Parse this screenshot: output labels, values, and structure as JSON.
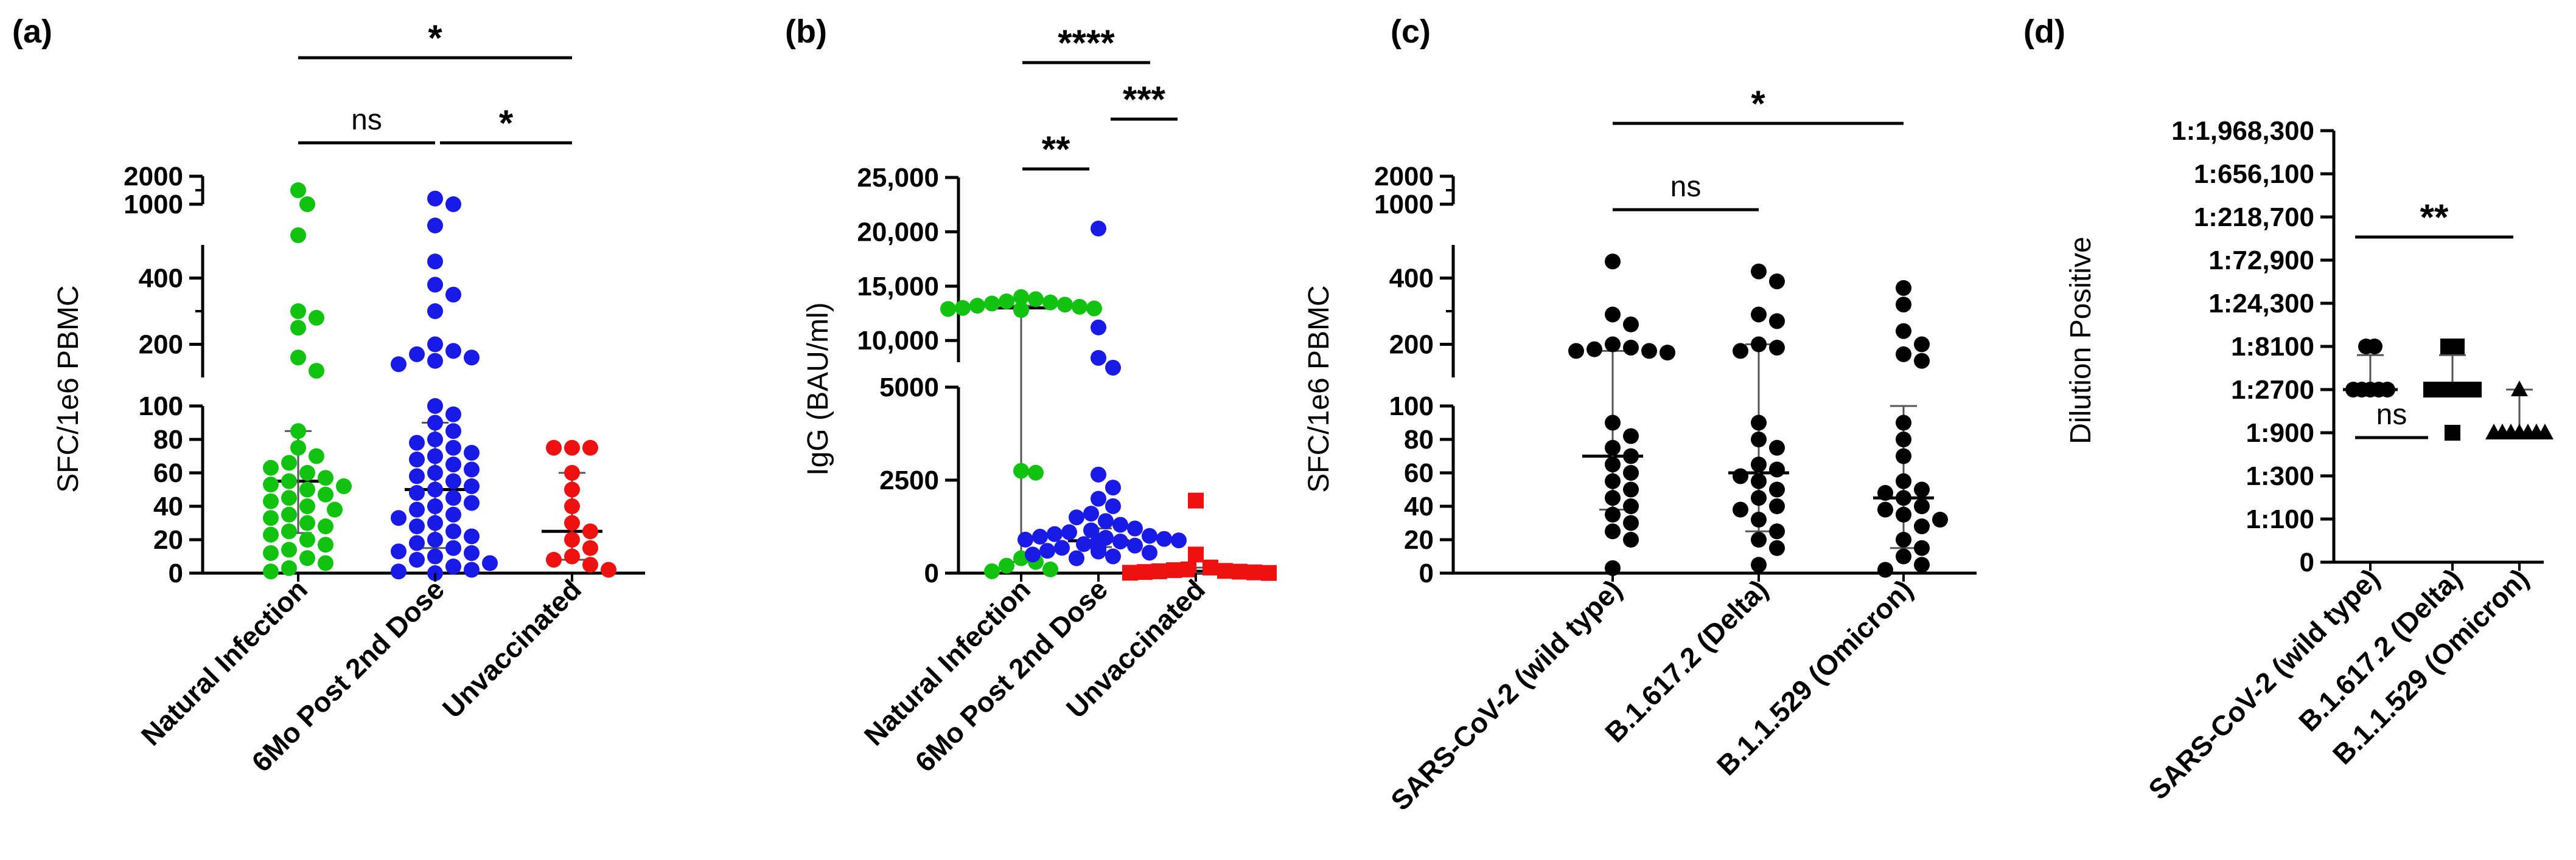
{
  "figure": {
    "panel_labels": [
      "(a)",
      "(b)",
      "(c)",
      "(d)"
    ]
  },
  "colors": {
    "natural_infection": "#11c211",
    "post_dose": "#1a1ae6",
    "unvaccinated": "#ee1111",
    "variant": "#000000"
  },
  "chart_data": [
    {
      "panel": "(a)",
      "type": "scatter",
      "ylabel": "SFC/1e6 PBMC",
      "categories": [
        "Natural Infection",
        "6Mo Post 2nd Dose",
        "Unvaccinated"
      ],
      "y_segments": [
        {
          "range": [
            0,
            100
          ],
          "ticks": [
            0,
            20,
            40,
            60,
            80,
            100
          ]
        },
        {
          "range": [
            100,
            500
          ],
          "ticks": [
            100,
            200,
            400
          ]
        },
        {
          "range": [
            1000,
            2000
          ],
          "ticks": [
            1000,
            2000
          ]
        }
      ],
      "series": [
        {
          "name": "Natural Infection",
          "color_key": "natural_infection",
          "marker": "circle",
          "median": 55,
          "iqr": [
            24,
            85
          ],
          "values": [
            1500,
            1000,
            700,
            300,
            280,
            250,
            160,
            120,
            85,
            75,
            70,
            66,
            63,
            60,
            57,
            55,
            53,
            52,
            50,
            47,
            45,
            43,
            40,
            38,
            35,
            33,
            30,
            28,
            25,
            23,
            20,
            17,
            14,
            12,
            9,
            6,
            3,
            1
          ]
        },
        {
          "name": "6Mo Post 2nd Dose",
          "color_key": "post_dose",
          "marker": "circle",
          "median": 50,
          "iqr": [
            15,
            90
          ],
          "values": [
            1200,
            1000,
            900,
            450,
            380,
            350,
            300,
            200,
            180,
            170,
            160,
            150,
            140,
            100,
            95,
            90,
            85,
            80,
            78,
            75,
            72,
            70,
            68,
            65,
            62,
            60,
            58,
            55,
            52,
            50,
            48,
            45,
            42,
            40,
            38,
            35,
            33,
            30,
            28,
            25,
            22,
            20,
            18,
            15,
            13,
            12,
            10,
            8,
            6,
            4,
            2,
            1,
            0
          ]
        },
        {
          "name": "Unvaccinated",
          "color_key": "unvaccinated",
          "marker": "circle",
          "median": 25,
          "iqr": [
            8,
            60
          ],
          "values": [
            75,
            75,
            75,
            60,
            50,
            40,
            30,
            25,
            20,
            15,
            10,
            8,
            5,
            2
          ]
        }
      ],
      "brackets": [
        {
          "from": 0,
          "to": 1,
          "label": "ns",
          "level": 1
        },
        {
          "from": 1,
          "to": 2,
          "label": "*",
          "level": 1
        },
        {
          "from": 0,
          "to": 2,
          "label": "*",
          "level": 2
        }
      ]
    },
    {
      "panel": "(b)",
      "type": "scatter",
      "ylabel": "IgG (BAU/ml)",
      "categories": [
        "Natural Infection",
        "6Mo Post 2nd Dose",
        "Unvaccinated"
      ],
      "y_segments": [
        {
          "range": [
            0,
            5000
          ],
          "ticks": [
            0,
            2500,
            5000
          ],
          "tick_labels": [
            "0",
            "2500",
            "5000"
          ]
        },
        {
          "range": [
            8000,
            25000
          ],
          "ticks": [
            10000,
            15000,
            20000,
            25000
          ],
          "tick_labels": [
            "10,000",
            "15,000",
            "20,000",
            "25,000"
          ]
        }
      ],
      "series": [
        {
          "name": "Natural Infection",
          "color_key": "natural_infection",
          "marker": "circle",
          "median": 13000,
          "iqr": [
            300,
            13200
          ],
          "values": [
            14000,
            13800,
            13600,
            13500,
            13400,
            13300,
            13200,
            13100,
            13000,
            12950,
            12900,
            12850,
            12800,
            2750,
            2700,
            400,
            300,
            200,
            100,
            50
          ]
        },
        {
          "name": "6Mo Post 2nd Dose",
          "color_key": "post_dose",
          "marker": "circle",
          "median": 870,
          "iqr": [
            700,
            1200
          ],
          "values": [
            20300,
            11200,
            8400,
            7500,
            2650,
            2300,
            2000,
            1800,
            1600,
            1500,
            1400,
            1300,
            1200,
            1150,
            1100,
            1050,
            1000,
            980,
            950,
            920,
            900,
            880,
            860,
            850,
            830,
            810,
            800,
            780,
            760,
            740,
            720,
            700,
            680,
            650,
            620,
            600,
            580,
            550,
            500,
            450,
            400
          ]
        },
        {
          "name": "Unvaccinated",
          "color_key": "unvaccinated",
          "marker": "square",
          "median": 50,
          "iqr": [
            0,
            150
          ],
          "values": [
            1950,
            500,
            150,
            100,
            80,
            60,
            50,
            40,
            30,
            20,
            10,
            5
          ]
        }
      ],
      "brackets": [
        {
          "from": 0,
          "to": 1,
          "label": "**",
          "level": 1
        },
        {
          "from": 1,
          "to": 2,
          "label": "***",
          "level": 2
        },
        {
          "from": 0,
          "to": 2,
          "label": "****",
          "level": 3
        }
      ]
    },
    {
      "panel": "(c)",
      "type": "scatter",
      "ylabel": "SFC/1e6 PBMC",
      "categories": [
        "SARS-CoV-2 (wild type)",
        "B.1.617.2 (Delta)",
        "B.1.1.529 (Omicron)"
      ],
      "y_segments": [
        {
          "range": [
            0,
            100
          ],
          "ticks": [
            0,
            20,
            40,
            60,
            80,
            100
          ]
        },
        {
          "range": [
            100,
            500
          ],
          "ticks": [
            100,
            200,
            400
          ]
        },
        {
          "range": [
            1000,
            2000
          ],
          "ticks": [
            1000,
            2000
          ]
        }
      ],
      "series": [
        {
          "name": "SARS-CoV-2 (wild type)",
          "color_key": "variant",
          "marker": "circle",
          "median": 70,
          "iqr": [
            38,
            180
          ],
          "values": [
            450,
            290,
            260,
            200,
            190,
            185,
            180,
            180,
            175,
            90,
            82,
            75,
            70,
            65,
            60,
            55,
            50,
            45,
            40,
            35,
            30,
            25,
            20,
            3
          ]
        },
        {
          "name": "B.1.617.2 (Delta)",
          "color_key": "variant",
          "marker": "circle",
          "median": 60,
          "iqr": [
            25,
            200
          ],
          "values": [
            420,
            390,
            290,
            270,
            200,
            190,
            180,
            90,
            80,
            75,
            65,
            62,
            58,
            55,
            50,
            45,
            40,
            38,
            32,
            25,
            20,
            15,
            5
          ]
        },
        {
          "name": "B.1.1.529 (Omicron)",
          "color_key": "variant",
          "marker": "circle",
          "median": 45,
          "iqr": [
            15,
            100
          ],
          "values": [
            370,
            320,
            240,
            200,
            170,
            150,
            90,
            80,
            70,
            55,
            50,
            48,
            45,
            40,
            38,
            35,
            32,
            28,
            20,
            15,
            10,
            5,
            2
          ]
        }
      ],
      "brackets": [
        {
          "from": 0,
          "to": 1,
          "label": "ns",
          "level": 1
        },
        {
          "from": 0,
          "to": 2,
          "label": "*",
          "level": 2
        }
      ]
    },
    {
      "panel": "(d)",
      "type": "scatter",
      "ylabel": "Dilution Positive",
      "categories": [
        "SARS-CoV-2 (wild type)",
        "B.1.617.2 (Delta)",
        "B.1.1.529 (Omicron)"
      ],
      "y_axis_scale": "log3 dilution",
      "y_ticks": [
        "0",
        "1:100",
        "1:300",
        "1:900",
        "1:2700",
        "1:8100",
        "1:24,300",
        "1:72,900",
        "1:218,700",
        "1:656,100",
        "1:1,968,300"
      ],
      "series": [
        {
          "name": "SARS-CoV-2 (wild type)",
          "color_key": "variant",
          "marker": "circle",
          "median_level": 4,
          "error_top_level": 4.8,
          "levels": [
            5,
            5,
            4,
            4,
            4,
            4,
            4
          ]
        },
        {
          "name": "B.1.617.2 (Delta)",
          "color_key": "variant",
          "marker": "square",
          "median_level": 4,
          "error_top_level": 4.8,
          "levels": [
            5,
            5,
            4,
            4,
            4,
            4,
            4,
            4,
            3
          ]
        },
        {
          "name": "B.1.1.529 (Omicron)",
          "color_key": "variant",
          "marker": "triangle",
          "median_level": 3,
          "error_top_level": 4,
          "levels": [
            4,
            3,
            3,
            3,
            3,
            3,
            3,
            3
          ]
        }
      ],
      "brackets": [
        {
          "from": 0,
          "to": 1,
          "label": "ns",
          "level": 1
        },
        {
          "from": 0,
          "to": 2,
          "label": "**",
          "level": 2
        }
      ]
    }
  ]
}
